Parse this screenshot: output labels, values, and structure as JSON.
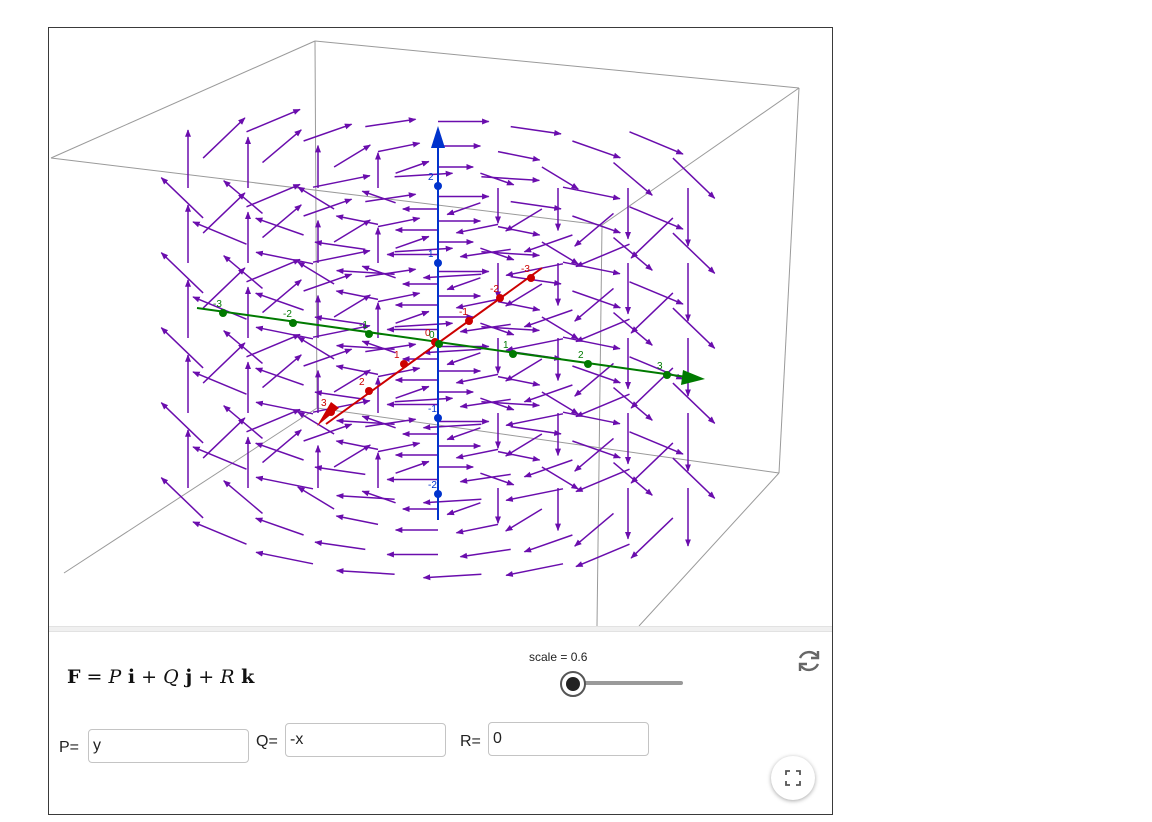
{
  "view3d": {
    "axis_ticks": {
      "x_red": [
        "3",
        "2",
        "1",
        "0",
        "-1",
        "-2",
        "-3"
      ],
      "y_green": [
        "-3",
        "-2",
        "-1",
        "0",
        "1",
        "2",
        "3"
      ],
      "z_blue": [
        "2",
        "1",
        "-1",
        "-2"
      ]
    },
    "colors": {
      "vector": "#6a0dad",
      "x_axis": "#cc0000",
      "y_axis": "#007a00",
      "z_axis": "#0033cc",
      "box": "#9a9a9a"
    }
  },
  "formula": {
    "lhs": "F",
    "eq": " = ",
    "p": "P",
    "i": " i",
    "plus1": " + ",
    "q": "Q",
    "j": " j",
    "plus2": " + ",
    "r": "R",
    "k": " k"
  },
  "slider": {
    "label": "scale = 0.6",
    "value": 0.6
  },
  "fields": {
    "p": {
      "label": "P=",
      "value": "y"
    },
    "q": {
      "label": "Q=",
      "value": "-x"
    },
    "r": {
      "label": "R=",
      "value": "0"
    }
  },
  "icons": {
    "reset": "refresh-icon",
    "fullscreen": "fullscreen-icon"
  }
}
